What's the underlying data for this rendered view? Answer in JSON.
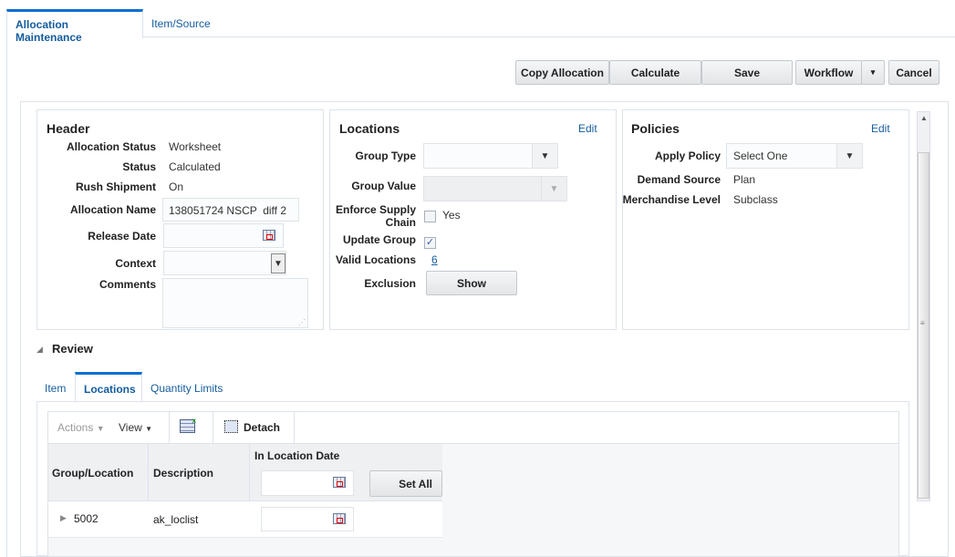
{
  "tabs": [
    {
      "label": "Allocation Maintenance"
    },
    {
      "label": "Item/Source"
    }
  ],
  "toolbar": {
    "copy": "Copy Allocation",
    "calculate": "Calculate",
    "save": "Save",
    "workflow": "Workflow",
    "cancel": "Cancel"
  },
  "header": {
    "title": "Header",
    "fields": {
      "allocation_status": {
        "label": "Allocation Status",
        "value": "Worksheet"
      },
      "status": {
        "label": "Status",
        "value": "Calculated"
      },
      "rush_shipment": {
        "label": "Rush Shipment",
        "value": "On"
      },
      "allocation_name": {
        "label": "Allocation Name",
        "value": "138051724 NSCP  diff 2"
      },
      "release_date": {
        "label": "Release Date",
        "value": ""
      },
      "context": {
        "label": "Context",
        "value": ""
      },
      "comments": {
        "label": "Comments",
        "value": ""
      }
    }
  },
  "locations": {
    "title": "Locations",
    "edit": "Edit",
    "group_type": "Group Type",
    "group_value": "Group Value",
    "enforce_supply_chain": "Enforce Supply Chain",
    "enforce_yes": "Yes",
    "enforce_checked": false,
    "update_group": "Update Group",
    "update_group_checked": true,
    "valid_locations": "Valid Locations",
    "valid_locations_value": "6",
    "exclusion": "Exclusion",
    "show": "Show"
  },
  "policies": {
    "title": "Policies",
    "edit": "Edit",
    "apply_policy": "Apply Policy",
    "apply_policy_value": "Select One",
    "demand_source": "Demand Source",
    "demand_source_value": "Plan",
    "merchandise_level": "Merchandise Level",
    "merchandise_level_value": "Subclass"
  },
  "review": {
    "title": "Review",
    "tabs": [
      {
        "label": "Item"
      },
      {
        "label": "Locations"
      },
      {
        "label": "Quantity Limits"
      }
    ],
    "active_tab": "Locations",
    "actions": "Actions",
    "view": "View",
    "detach": "Detach",
    "columns": {
      "group_location": "Group/Location",
      "description": "Description",
      "in_location_date": "In Location Date",
      "set_all": "Set All"
    },
    "rows": [
      {
        "group_location": "5002",
        "description": "ak_loclist",
        "in_location_date": ""
      }
    ]
  }
}
